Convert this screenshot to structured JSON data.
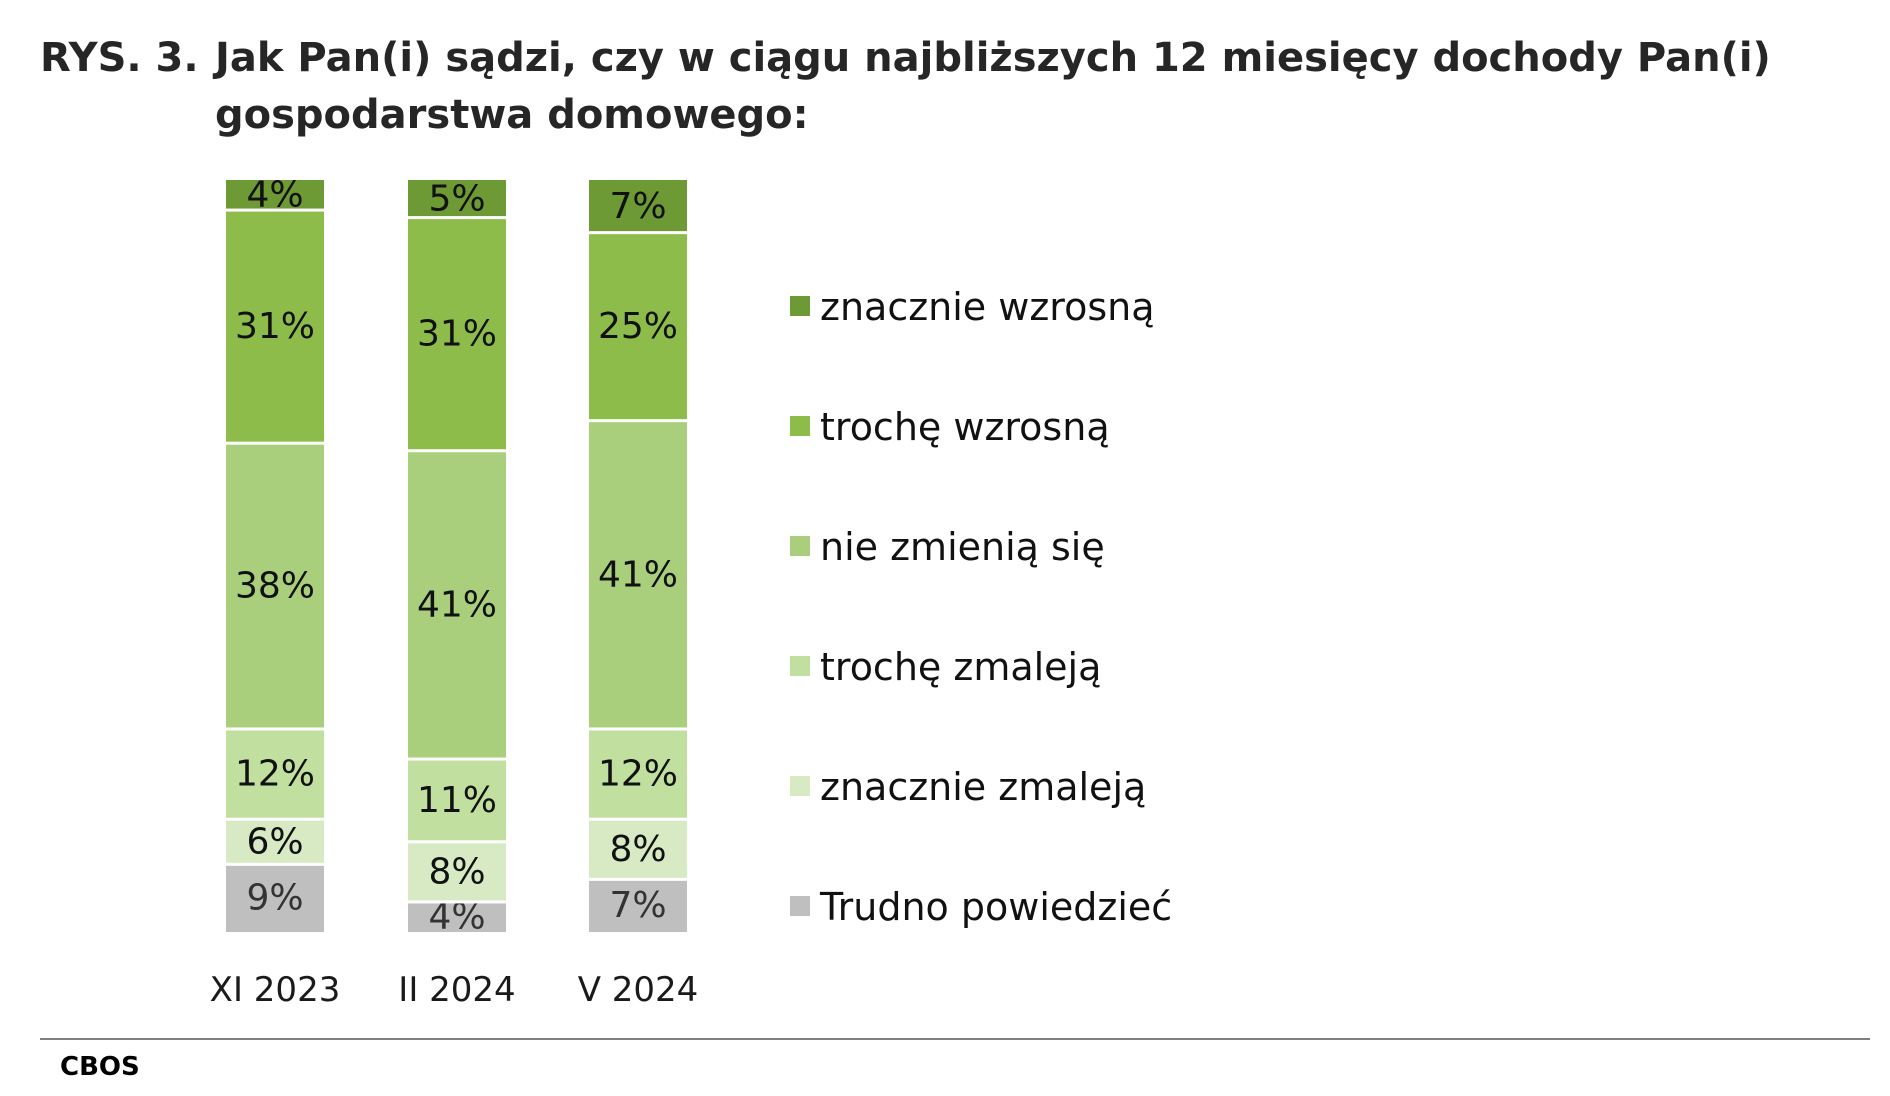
{
  "title": {
    "prefix": "RYS. 3.",
    "text": "Jak Pan(i) sądzi, czy w ciągu najbliższych 12 miesięcy dochody Pan(i) gospodarstwa domowego:"
  },
  "source": "CBOS",
  "chart_data": {
    "type": "bar",
    "stacked": true,
    "orientation": "vertical",
    "categories": [
      "XI 2023",
      "II 2024",
      "V 2024"
    ],
    "series": [
      {
        "name": "Trudno powiedzieć",
        "values": [
          9,
          4,
          7
        ],
        "labels": [
          "9%",
          "4%",
          "7%"
        ],
        "color": "#bfbfbf"
      },
      {
        "name": "znacznie zmaleją",
        "values": [
          6,
          8,
          8
        ],
        "labels": [
          "6%",
          "8%",
          "8%"
        ],
        "color": "#d7eac4"
      },
      {
        "name": "trochę zmaleją",
        "values": [
          12,
          11,
          12
        ],
        "labels": [
          "12%",
          "11%",
          "12%"
        ],
        "color": "#c1df9f"
      },
      {
        "name": "nie zmienią się",
        "values": [
          38,
          41,
          41
        ],
        "labels": [
          "38%",
          "41%",
          "41%"
        ],
        "color": "#a9cf7c"
      },
      {
        "name": "trochę wzrosną",
        "values": [
          31,
          31,
          25
        ],
        "labels": [
          "31%",
          "31%",
          "25%"
        ],
        "color": "#8ebc4b"
      },
      {
        "name": "znacznie wzrosną",
        "values": [
          4,
          5,
          7
        ],
        "labels": [
          "4%",
          "5%",
          "7%"
        ],
        "color": "#6e9a35"
      }
    ],
    "legend_order": [
      "znacznie wzrosną",
      "trochę wzrosną",
      "nie zmienią się",
      "trochę zmaleją",
      "znacznie zmaleją",
      "Trudno powiedzieć"
    ],
    "legend_position": "right",
    "ylim": [
      0,
      100
    ],
    "grid": false,
    "xlabel": "",
    "ylabel": ""
  }
}
